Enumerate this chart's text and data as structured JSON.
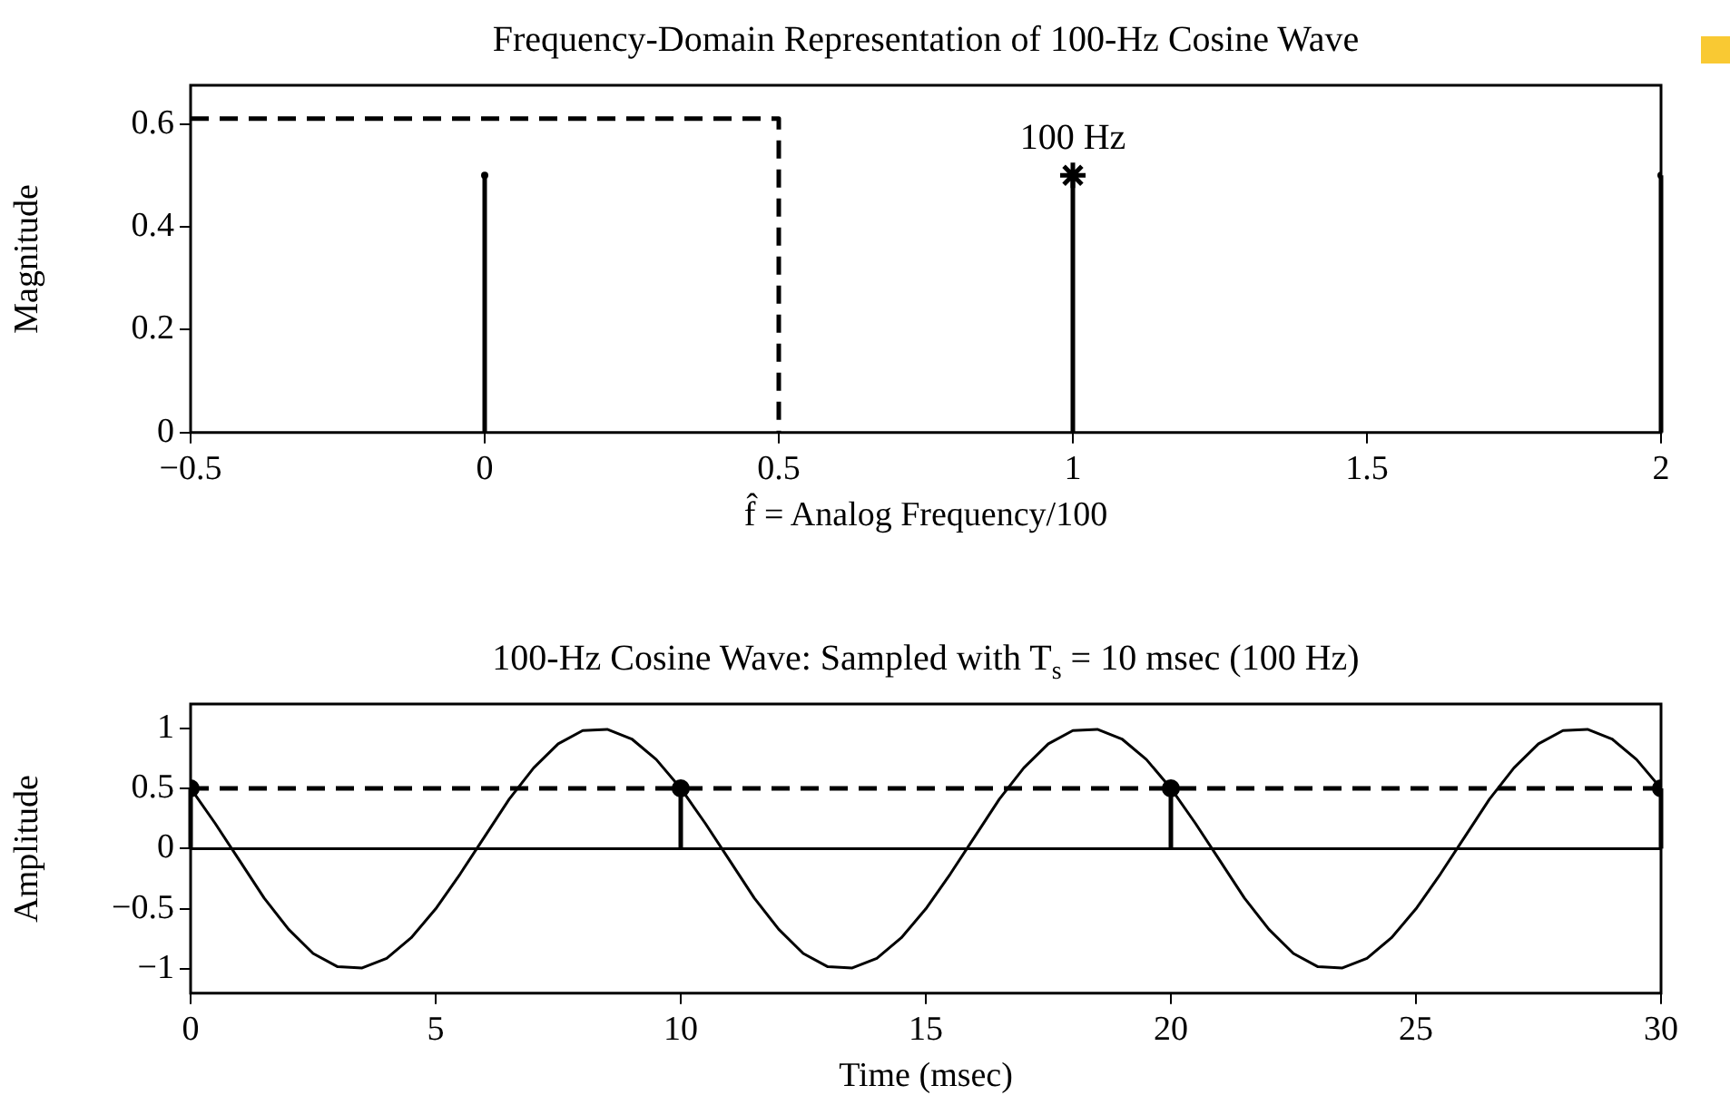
{
  "chart_data": [
    {
      "type": "lollipop",
      "title": "Frequency-Domain Representation of 100-Hz Cosine Wave",
      "xlabel": "f̂ = Analog Frequency/100",
      "ylabel": "Magnitude",
      "xlim": [
        -0.5,
        2
      ],
      "xticks": [
        {
          "value": -0.5,
          "label": "−0.5"
        },
        0,
        0.5,
        1,
        1.5,
        2
      ],
      "ylim": [
        0,
        0.675
      ],
      "yticks": [
        0,
        0.2,
        0.4,
        0.6
      ],
      "legend": false,
      "annotations": [
        {
          "text": "100 Hz",
          "x": 1,
          "y": 0.5
        }
      ],
      "series": [
        {
          "x": [
            0,
            2
          ],
          "values": [
            0.5,
            0.5
          ],
          "color": "#000000"
        },
        {
          "x": [
            1
          ],
          "values": [
            0.5
          ],
          "color": "#000000",
          "marker": "cross"
        },
        {
          "type": "line",
          "x": [
            -0.5,
            0.5,
            0.5
          ],
          "values": [
            0.61,
            0.61,
            0
          ],
          "color": "#000000",
          "line_style": "dashed",
          "marker": "none"
        }
      ]
    },
    {
      "type": "line",
      "title": "100-Hz Cosine Wave: Sampled with T$_{s}$ = 10 msec (100 Hz)",
      "xlabel": "Time (msec)",
      "ylabel": "Amplitude",
      "xlim": [
        0,
        30
      ],
      "xticks": [
        0,
        5,
        10,
        15,
        20,
        25,
        30
      ],
      "ylim": [
        -1.2,
        1.2
      ],
      "yticks": [
        {
          "value": -1,
          "label": "−1"
        },
        {
          "value": -0.5,
          "label": "−0.5"
        },
        0,
        0.5,
        1
      ],
      "legend": false,
      "ref_lines": [
        {
          "axis": "y",
          "value": 0,
          "color": "#000000"
        }
      ],
      "series": [
        {
          "color": "#000000",
          "marker": "none",
          "x": [
            0,
            0.5,
            1,
            1.5,
            2,
            2.5,
            3,
            3.5,
            4,
            4.5,
            5,
            5.5,
            6,
            6.5,
            7,
            7.5,
            8,
            8.5,
            9,
            9.5,
            10,
            10.5,
            11,
            11.5,
            12,
            12.5,
            13,
            13.5,
            14,
            14.5,
            15,
            15.5,
            16,
            16.5,
            17,
            17.5,
            18,
            18.5,
            19,
            19.5,
            20,
            20.5,
            21,
            21.5,
            22,
            22.5,
            23,
            23.5,
            24,
            24.5,
            25,
            25.5,
            26,
            26.5,
            27,
            27.5,
            28,
            28.5,
            29,
            29.5,
            30
          ],
          "values": [
            0.5,
            0.21,
            -0.1,
            -0.41,
            -0.67,
            -0.87,
            -0.98,
            -0.99,
            -0.91,
            -0.74,
            -0.5,
            -0.21,
            0.1,
            0.41,
            0.67,
            0.87,
            0.98,
            0.99,
            0.91,
            0.74,
            0.5,
            0.21,
            -0.1,
            -0.41,
            -0.67,
            -0.87,
            -0.98,
            -0.99,
            -0.91,
            -0.74,
            -0.5,
            -0.21,
            0.1,
            0.41,
            0.67,
            0.87,
            0.98,
            0.99,
            0.91,
            0.74,
            0.5,
            0.21,
            -0.1,
            -0.41,
            -0.67,
            -0.87,
            -0.98,
            -0.99,
            -0.91,
            -0.74,
            -0.5,
            -0.21,
            0.1,
            0.41,
            0.67,
            0.87,
            0.98,
            0.99,
            0.91,
            0.74,
            0.5
          ]
        },
        {
          "type": "lollipop",
          "color": "#000000",
          "marker": "circle",
          "x": [
            0,
            10,
            20,
            30
          ],
          "values": [
            0.5,
            0.5,
            0.5,
            0.5
          ]
        },
        {
          "color": "#000000",
          "marker": "none",
          "line_style": "dashed",
          "x": [
            0,
            30
          ],
          "values": [
            0.5,
            0.5
          ]
        }
      ]
    }
  ]
}
